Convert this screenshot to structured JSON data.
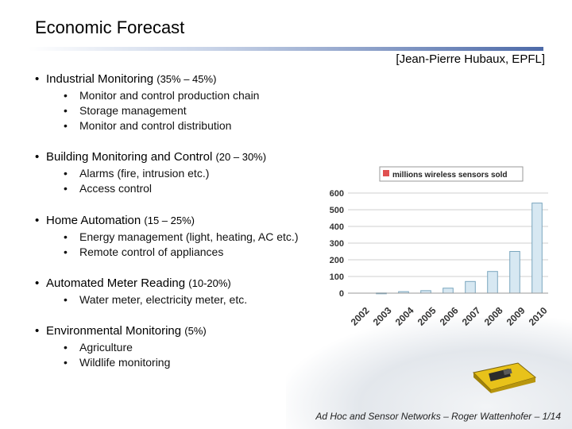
{
  "title": "Economic Forecast",
  "citation": "[Jean-Pierre Hubaux, EPFL]",
  "bullets": [
    {
      "label": "Industrial Monitoring",
      "pct": "(35% – 45%)",
      "subs": [
        "Monitor and control production chain",
        "Storage management",
        "Monitor and control distribution"
      ]
    },
    {
      "label": "Building Monitoring and Control",
      "pct": "(20 – 30%)",
      "subs": [
        "Alarms (fire, intrusion etc.)",
        "Access control"
      ]
    },
    {
      "label": "Home Automation",
      "pct": "(15 – 25%)",
      "subs": [
        "Energy management (light, heating, AC etc.)",
        "Remote control of appliances"
      ]
    },
    {
      "label": "Automated Meter Reading",
      "pct": "(10-20%)",
      "subs": [
        "Water meter, electricity meter, etc."
      ]
    },
    {
      "label": "Environmental Monitoring",
      "pct": "(5%)",
      "subs": [
        "Agriculture",
        "Wildlife monitoring"
      ]
    }
  ],
  "footer": "Ad Hoc and Sensor Networks – Roger Wattenhofer – 1/14",
  "chart_data": {
    "type": "bar",
    "title": "",
    "legend": [
      "millions wireless sensors sold"
    ],
    "categories": [
      "2002",
      "2003",
      "2004",
      "2005",
      "2006",
      "2007",
      "2008",
      "2009",
      "2010"
    ],
    "values": [
      0,
      1,
      9,
      15,
      30,
      70,
      130,
      250,
      540
    ],
    "yticks": [
      "0",
      "100",
      "200",
      "300",
      "400",
      "500",
      "600"
    ],
    "ylim": [
      0,
      600
    ],
    "grid": true,
    "bar_color": "#d7e8f2",
    "bar_edge": "#7aa6be",
    "legend_marker_color": "#e05050"
  }
}
